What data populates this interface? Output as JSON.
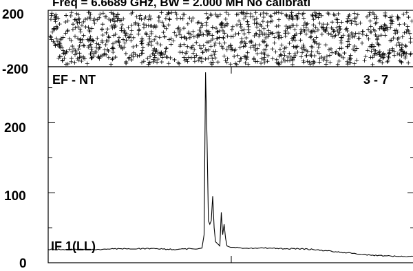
{
  "chart_data": [
    {
      "type": "scatter",
      "panel": "phase",
      "title": "Freq = 6.6689 GHz, BW = 2.000 MH   No calibrati",
      "ylim": [
        -200,
        200
      ],
      "y_tick_labels": [
        "200",
        "-200"
      ],
      "marker": "plus",
      "color": "#000000",
      "points_description": "uniformly scattered phase points across the full channel range",
      "x_range_channels": [
        0,
        1024
      ]
    },
    {
      "type": "line",
      "panel": "amplitude",
      "baseline_label": "EF - NT",
      "baseline_id": "3 - 7",
      "series_name": "IF 1(LL)",
      "ylim": [
        0,
        280
      ],
      "y_ticks": [
        0,
        100,
        200
      ],
      "y_tick_labels": [
        "0",
        "100",
        "200"
      ],
      "color": "#000000",
      "x_range_channels": [
        0,
        1024
      ],
      "x": [
        0,
        50,
        100,
        150,
        200,
        250,
        300,
        350,
        400,
        420,
        430,
        436,
        440,
        444,
        448,
        452,
        456,
        460,
        464,
        468,
        472,
        476,
        480,
        484,
        488,
        492,
        496,
        500,
        505,
        510,
        520,
        540,
        580,
        620,
        660,
        700,
        740,
        780,
        820,
        860,
        900,
        940,
        980,
        1024
      ],
      "values": [
        19,
        19,
        19,
        19,
        20,
        20,
        20,
        19,
        20,
        20,
        21,
        40,
        272,
        180,
        60,
        55,
        60,
        95,
        50,
        30,
        28,
        26,
        24,
        72,
        40,
        55,
        35,
        24,
        23,
        22,
        22,
        21,
        21,
        21,
        20,
        20,
        19,
        17,
        15,
        13,
        11,
        10,
        9,
        9
      ]
    }
  ]
}
